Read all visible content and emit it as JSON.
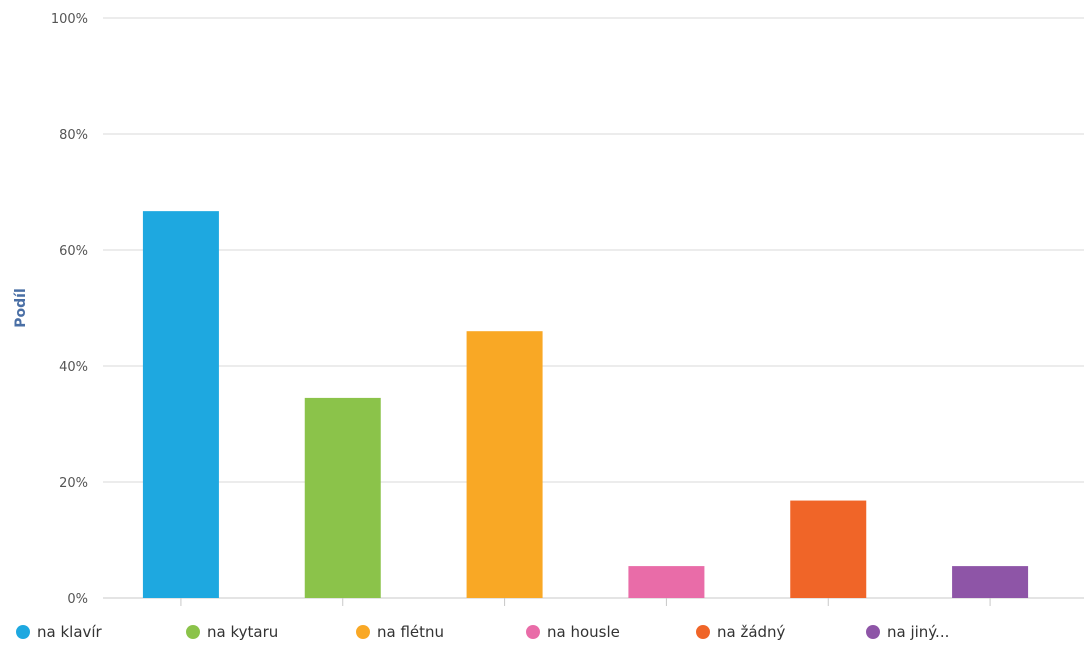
{
  "chart_data": {
    "type": "bar",
    "categories": [
      "na klavír",
      "na kytaru",
      "na flétnu",
      "na housle",
      "na žádný",
      "na jiný..."
    ],
    "values": [
      66.7,
      34.5,
      46.0,
      5.5,
      16.8,
      5.5
    ],
    "colors": [
      "#1ea8e0",
      "#8bc34a",
      "#f9a825",
      "#e96ca8",
      "#f06528",
      "#8e55a7"
    ],
    "ylabel": "Podíl",
    "ylim": [
      0,
      100
    ],
    "yticks": [
      0,
      20,
      40,
      60,
      80,
      100
    ],
    "ytick_labels": [
      "0%",
      "20%",
      "40%",
      "60%",
      "80%",
      "100%"
    ],
    "grid": true,
    "legend_position": "bottom"
  }
}
